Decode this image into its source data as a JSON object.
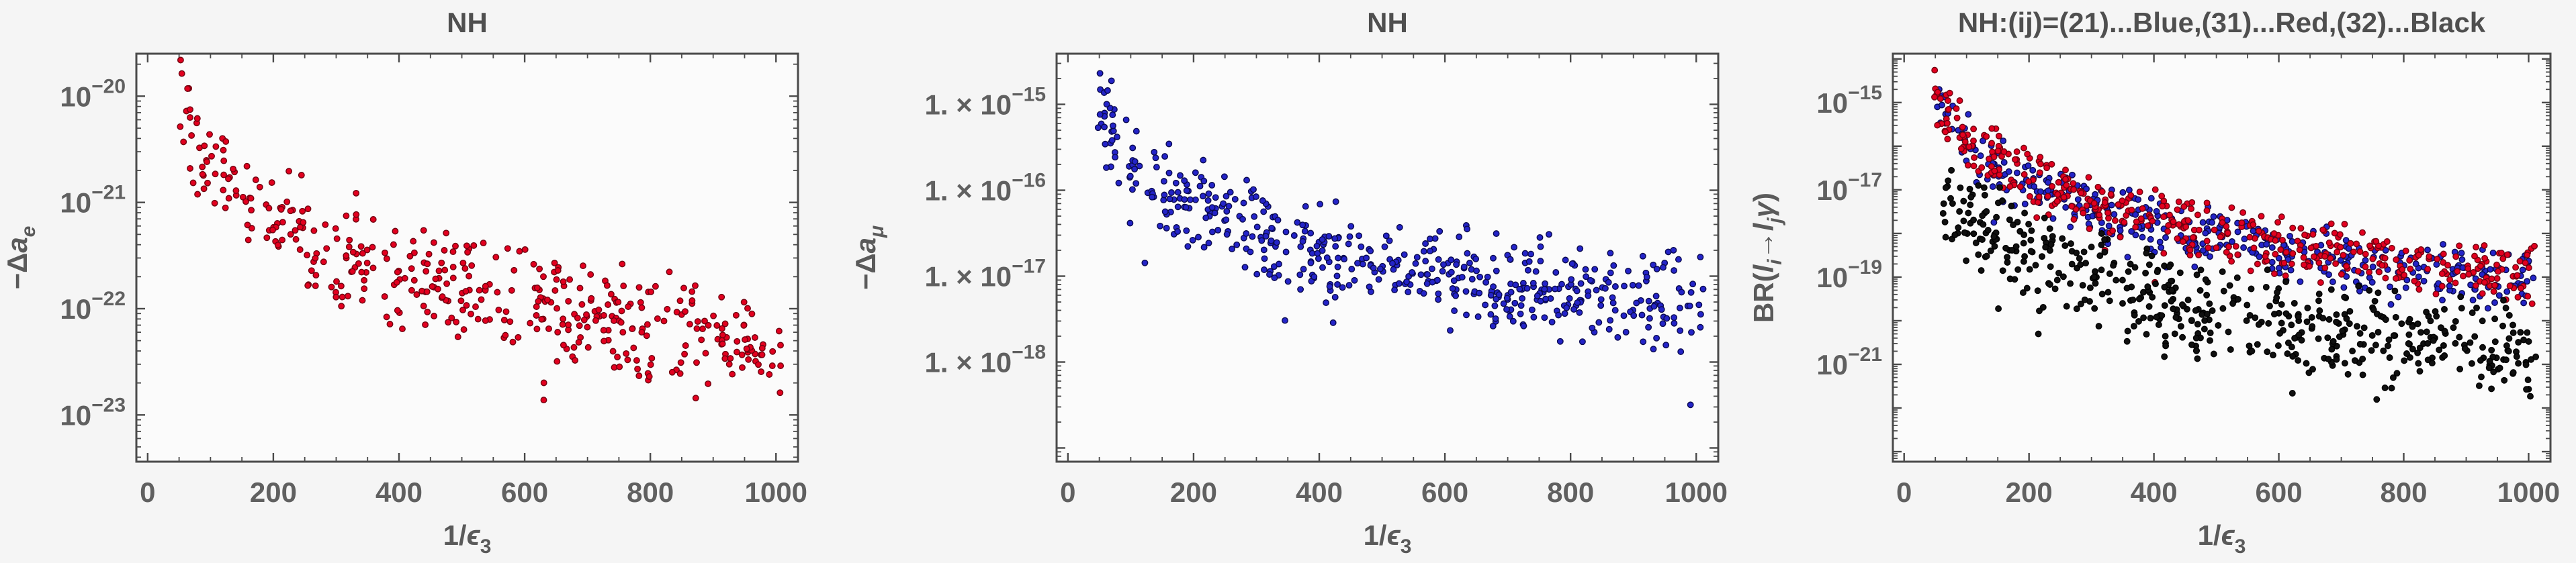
{
  "figure": {
    "description": "Three log-scale scatter panels (normal hierarchy NH): electron dipole moment shift, muon dipole moment shift, and lepton-flavor-violating branching ratios versus inverse epsilon-3",
    "panel_count": 3
  },
  "style": {
    "page_bg": "#f5f5f5",
    "plot_bg": "#fbfbfb",
    "frame_color": "#4a4a4a",
    "tick_color": "#4a4a4a",
    "tick_label_color": "#606060",
    "axis_label_color": "#5a5a5a",
    "title_color": "#4f4f4f",
    "point_colors": {
      "red": "#e2001f",
      "blue": "#2424c8",
      "black": "#101010"
    }
  },
  "chart_data": [
    {
      "type": "scatter",
      "title": "NH",
      "xlabel_segments": [
        {
          "t": "1/"
        },
        {
          "t": "ϵ",
          "i": true
        },
        {
          "t": "3",
          "sub": true
        }
      ],
      "ylabel_segments": [
        {
          "t": "−Δ"
        },
        {
          "t": "a",
          "i": true
        },
        {
          "t": "e",
          "sub": true,
          "i": true
        }
      ],
      "xlim": [
        -18,
        1035
      ],
      "x_ticks": [
        0,
        200,
        400,
        600,
        800,
        1000
      ],
      "x_tick_labels": [
        "0",
        "200",
        "400",
        "600",
        "800",
        "1000"
      ],
      "x_minor_step": 50,
      "ylim_log": [
        -23.44,
        -19.6
      ],
      "y_ticks": [
        {
          "exp": -20,
          "segments": [
            {
              "t": "10"
            },
            {
              "t": "−20",
              "sup": true
            }
          ]
        },
        {
          "exp": -21,
          "segments": [
            {
              "t": "10"
            },
            {
              "t": "−21",
              "sup": true
            }
          ]
        },
        {
          "exp": -22,
          "segments": [
            {
              "t": "10"
            },
            {
              "t": "−22",
              "sup": true
            }
          ]
        },
        {
          "exp": -23,
          "segments": [
            {
              "t": "10"
            },
            {
              "t": "−23",
              "sup": true
            }
          ]
        }
      ],
      "y_unlabeled_decades": [],
      "series": [
        {
          "name": "delta-a-e-points",
          "color_name": "red",
          "color": "#e2001f",
          "edge_color": "#70000f",
          "marker": "circle",
          "n": 430,
          "seed": 101,
          "x_range": [
            48,
            1010
          ],
          "lx_ref": 1.78,
          "ly_ref": -19.66,
          "slope": -1.72,
          "band": [
            -1.2,
            0.05
          ],
          "outlier_prob": 0.04,
          "outlier_extra": -0.8,
          "approx_envelope": {
            "x": [
              60,
              1000
            ],
            "log10_y_top": [
              -19.6,
              -21.7
            ],
            "log10_y_bottom": [
              -20.8,
              -23.1
            ]
          }
        }
      ]
    },
    {
      "type": "scatter",
      "title": "NH",
      "xlabel_segments": [
        {
          "t": "1/"
        },
        {
          "t": "ϵ",
          "i": true
        },
        {
          "t": "3",
          "sub": true
        }
      ],
      "ylabel_segments": [
        {
          "t": "−Δ"
        },
        {
          "t": "a",
          "i": true
        },
        {
          "t": "μ",
          "sub": true,
          "i": true
        }
      ],
      "xlim": [
        -18,
        1035
      ],
      "x_ticks": [
        0,
        200,
        400,
        600,
        800,
        1000
      ],
      "x_tick_labels": [
        "0",
        "200",
        "400",
        "600",
        "800",
        "1000"
      ],
      "x_minor_step": 50,
      "ylim_log": [
        -19.16,
        -14.41
      ],
      "y_ticks": [
        {
          "exp": -15,
          "segments": [
            {
              "t": "1. × 10"
            },
            {
              "t": "−15",
              "sup": true
            }
          ]
        },
        {
          "exp": -16,
          "segments": [
            {
              "t": "1. × 10"
            },
            {
              "t": "−16",
              "sup": true
            }
          ]
        },
        {
          "exp": -17,
          "segments": [
            {
              "t": "1. × 10"
            },
            {
              "t": "−17",
              "sup": true
            }
          ]
        },
        {
          "exp": -18,
          "segments": [
            {
              "t": "1. × 10"
            },
            {
              "t": "−18",
              "sup": true
            }
          ]
        }
      ],
      "y_unlabeled_decades": [
        -19
      ],
      "series": [
        {
          "name": "delta-a-mu-points",
          "color_name": "blue",
          "color": "#2424c8",
          "edge_color": "#0a0a50",
          "marker": "circle",
          "n": 520,
          "seed": 202,
          "x_range": [
            48,
            1012
          ],
          "lx_ref": 1.78,
          "ly_ref": -14.66,
          "slope": -1.7,
          "band": [
            -1.25,
            0.05
          ],
          "outlier_prob": 0.03,
          "outlier_extra": -0.9,
          "approx_envelope": {
            "x": [
              60,
              1000
            ],
            "log10_y_top": [
              -14.6,
              -16.6
            ],
            "log10_y_bottom": [
              -15.9,
              -18.1
            ]
          }
        }
      ]
    },
    {
      "type": "scatter",
      "title": "NH:(ij)=(21)...Blue,(31)...Red,(32)...Black",
      "legend": {
        "in_title": true,
        "entries": [
          {
            "label": "(21)",
            "color_name": "Blue",
            "color": "#2424c8"
          },
          {
            "label": "(31)",
            "color_name": "Red",
            "color": "#e2001f"
          },
          {
            "label": "(32)",
            "color_name": "Black",
            "color": "#101010"
          }
        ]
      },
      "xlabel_segments": [
        {
          "t": "1/"
        },
        {
          "t": "ϵ",
          "i": true
        },
        {
          "t": "3",
          "sub": true
        }
      ],
      "ylabel_segments": [
        {
          "t": "BR("
        },
        {
          "t": "l",
          "i": true
        },
        {
          "t": "i",
          "sub": true,
          "i": true
        },
        {
          "t": "→"
        },
        {
          "t": "l",
          "i": true
        },
        {
          "t": "j",
          "sub": true,
          "i": true
        },
        {
          "t": "γ",
          "i": true
        },
        {
          "t": ")"
        }
      ],
      "xlim": [
        -18,
        1035
      ],
      "x_ticks": [
        0,
        200,
        400,
        600,
        800,
        1000
      ],
      "x_tick_labels": [
        "0",
        "200",
        "400",
        "600",
        "800",
        "1000"
      ],
      "x_minor_step": 50,
      "ylim_log": [
        -23.23,
        -13.88
      ],
      "y_ticks": [
        {
          "exp": -15,
          "segments": [
            {
              "t": "10"
            },
            {
              "t": "−15",
              "sup": true
            }
          ]
        },
        {
          "exp": -17,
          "segments": [
            {
              "t": "10"
            },
            {
              "t": "−17",
              "sup": true
            }
          ]
        },
        {
          "exp": -19,
          "segments": [
            {
              "t": "10"
            },
            {
              "t": "−19",
              "sup": true
            }
          ]
        },
        {
          "exp": -21,
          "segments": [
            {
              "t": "10"
            },
            {
              "t": "−21",
              "sup": true
            }
          ]
        }
      ],
      "y_unlabeled_decades": [
        -14,
        -16,
        -18,
        -20,
        -22,
        -23
      ],
      "series": [
        {
          "name": "br-21-points",
          "color_name": "blue",
          "color": "#2424c8",
          "edge_color": "#0a0a50",
          "marker": "circle",
          "n": 390,
          "seed": 301,
          "x_range": [
            50,
            1012
          ],
          "lx_ref": 1.78,
          "ly_ref": -14.55,
          "slope": -3.2,
          "band": [
            -1.45,
            0.1
          ],
          "outlier_prob": 0.03,
          "outlier_extra": -0.8,
          "approx_envelope": {
            "x": [
              60,
              1000
            ],
            "log10_y_top": [
              -14.4,
              -18.0
            ],
            "log10_y_bottom": [
              -16.0,
              -19.6
            ]
          }
        },
        {
          "name": "br-31-points",
          "color_name": "red",
          "color": "#e2001f",
          "edge_color": "#70000f",
          "marker": "circle",
          "n": 430,
          "seed": 302,
          "x_range": [
            48,
            1012
          ],
          "lx_ref": 1.78,
          "ly_ref": -14.35,
          "slope": -3.2,
          "band": [
            -1.5,
            0.1
          ],
          "outlier_prob": 0.03,
          "outlier_extra": -0.8,
          "approx_envelope": {
            "x": [
              60,
              1000
            ],
            "log10_y_top": [
              -14.2,
              -17.8
            ],
            "log10_y_bottom": [
              -15.9,
              -19.5
            ]
          }
        },
        {
          "name": "br-32-points",
          "color_name": "black",
          "color": "#101010",
          "edge_color": "#000000",
          "marker": "circle",
          "n": 500,
          "seed": 303,
          "x_range": [
            55,
            1012
          ],
          "lx_ref": 1.78,
          "ly_ref": -15.7,
          "slope": -3.3,
          "band": [
            -2.3,
            0.25
          ],
          "outlier_prob": 0.06,
          "outlier_extra": -1.2,
          "approx_envelope": {
            "x": [
              60,
              1000
            ],
            "log10_y_top": [
              -15.5,
              -19.5
            ],
            "log10_y_bottom": [
              -17.9,
              -22.5
            ]
          }
        }
      ]
    }
  ]
}
